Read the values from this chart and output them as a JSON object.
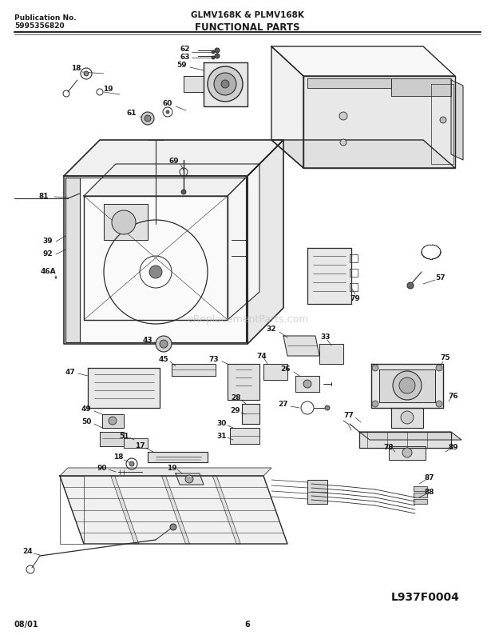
{
  "pub_no": "Publication No.",
  "pub_num": "5995356820",
  "model": "GLMV168K & PLMV168K",
  "section": "FUNCTIONAL PARTS",
  "diagram_id": "L937F0004",
  "date": "08/01",
  "page": "6",
  "bg_color": "#ffffff",
  "line_color": "#2a2a2a",
  "text_color": "#1a1a1a",
  "watermark": "eReplacementParts.com"
}
